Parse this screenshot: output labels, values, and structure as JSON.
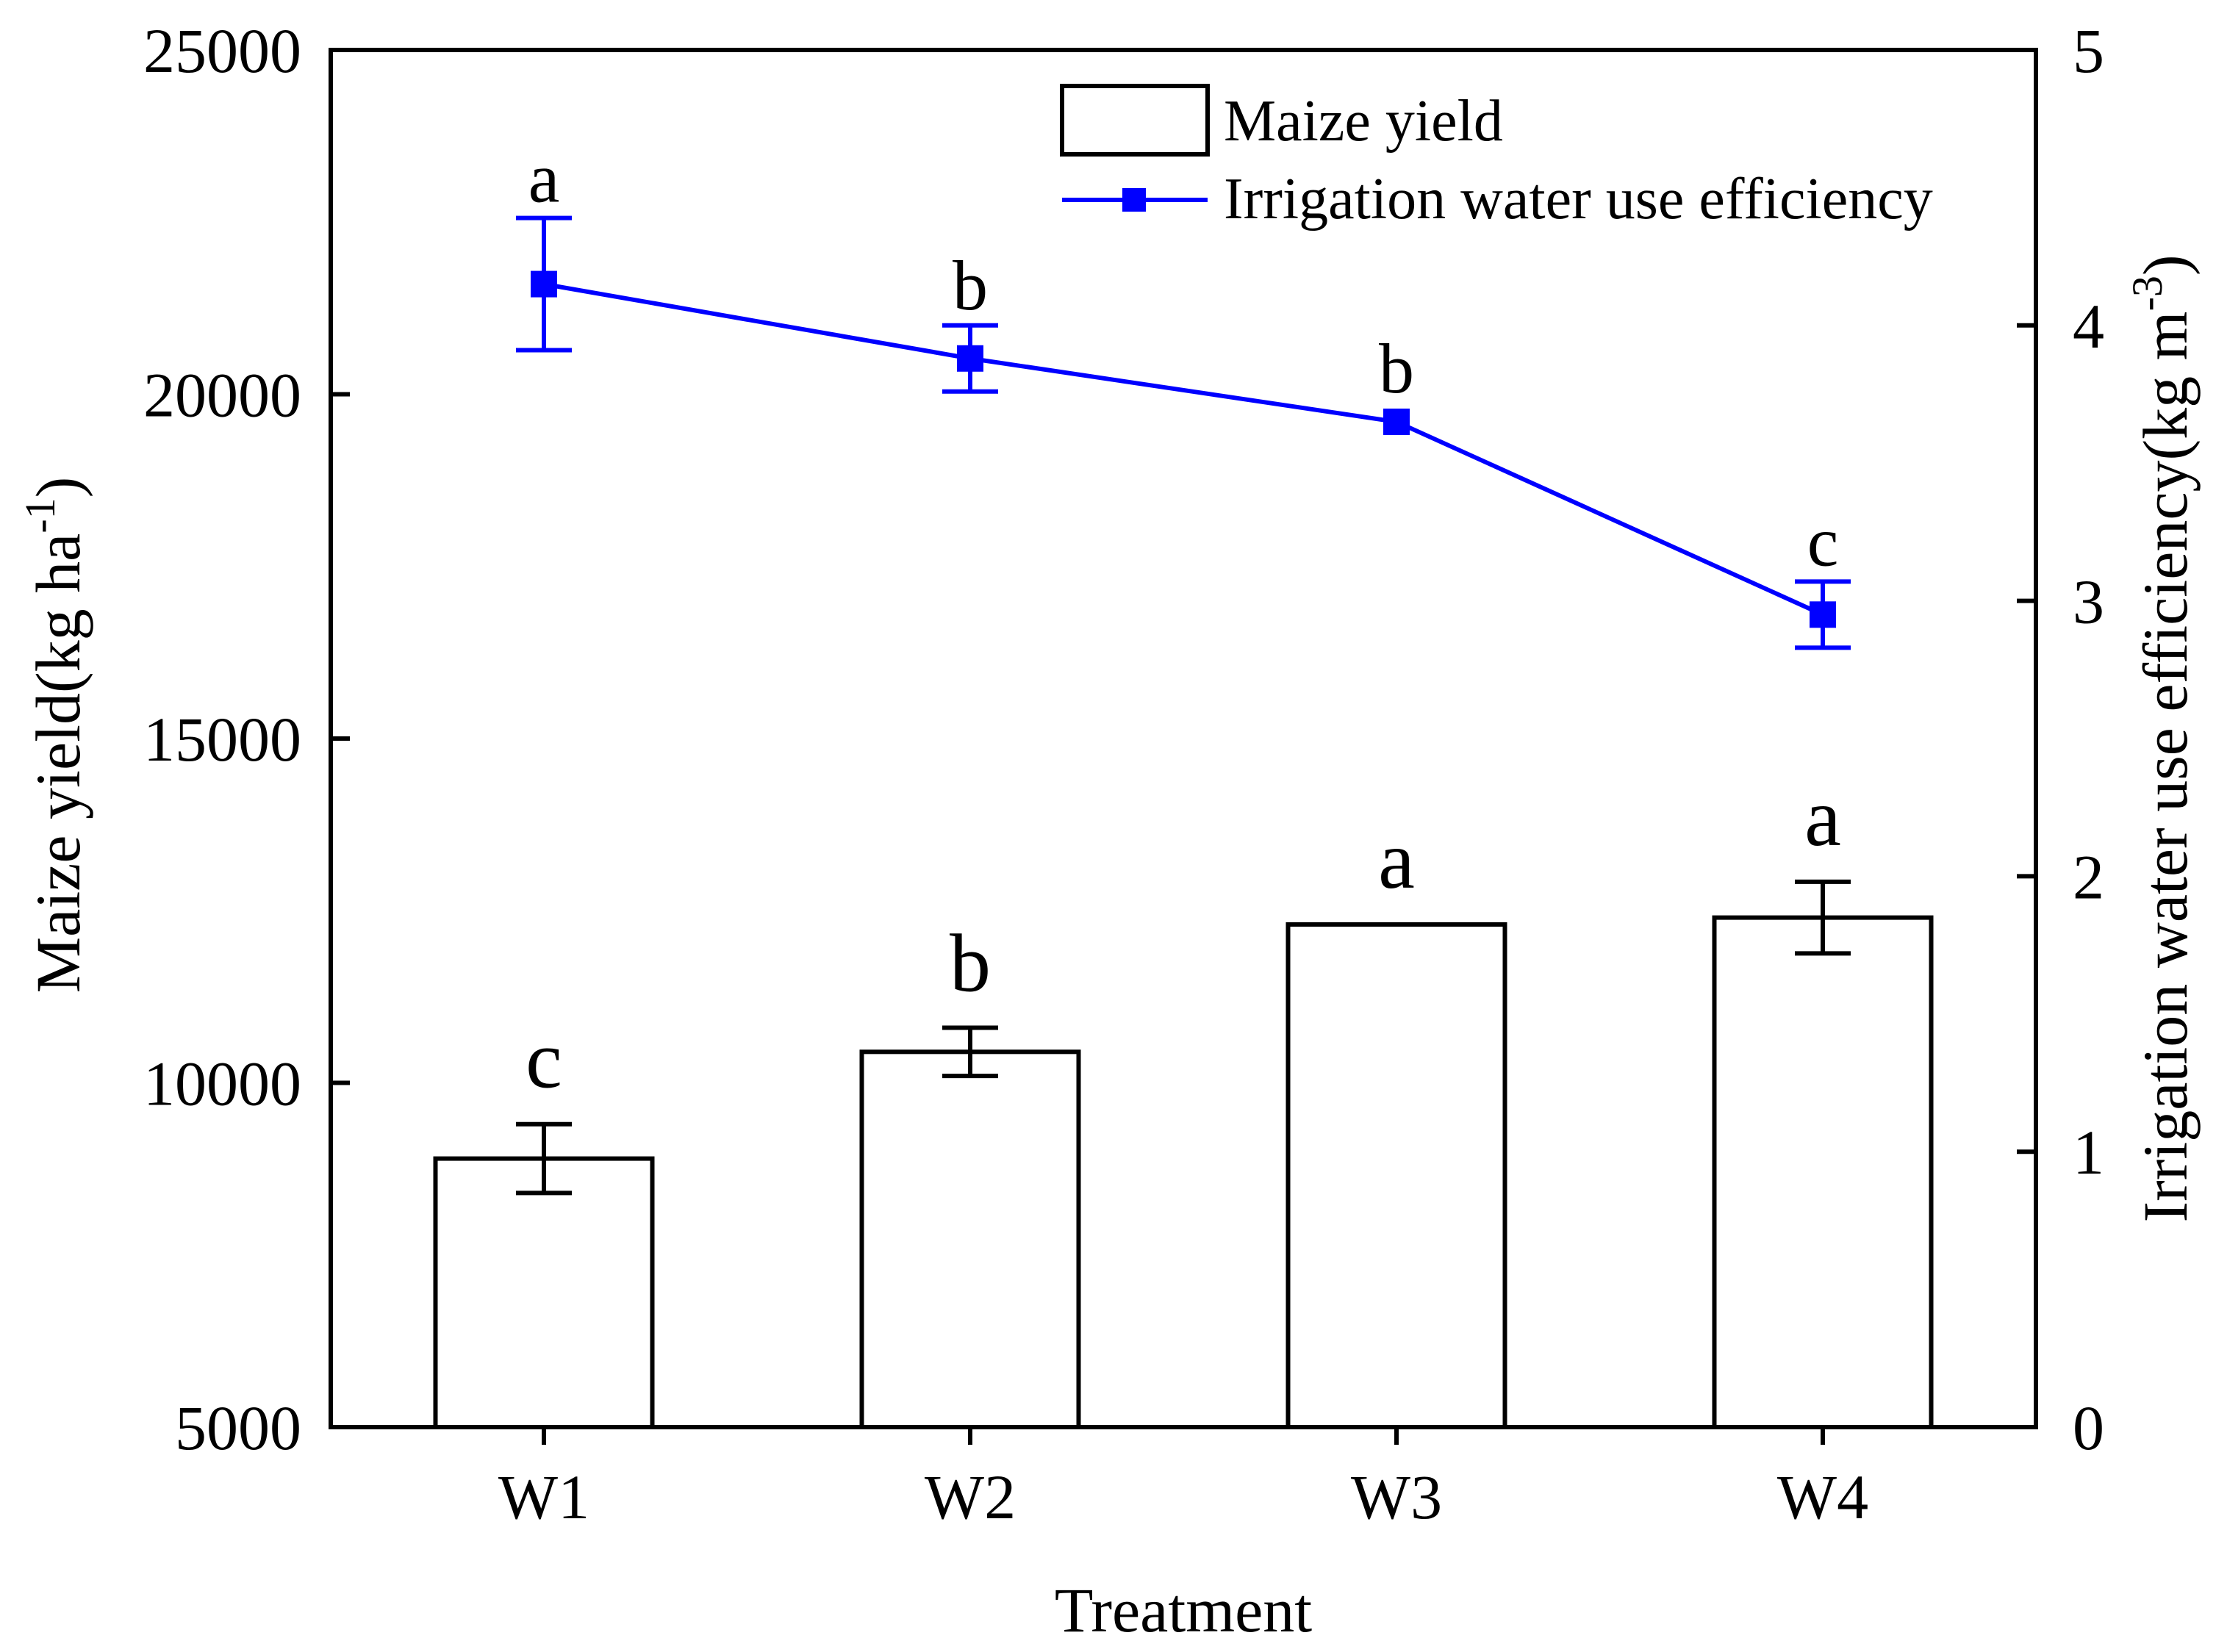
{
  "chart_data": {
    "type": "bar+line",
    "categories": [
      "W1",
      "W2",
      "W3",
      "W4"
    ],
    "xlabel": "Treatment",
    "ylabel_left": {
      "text": "Maize yield(kg ha",
      "sup": "-1",
      "close": ")"
    },
    "ylabel_right": {
      "text": "Irrigation water use efficiency(kg m",
      "sup": "-3",
      "close": ")"
    },
    "left_axis": {
      "min": 5000,
      "max": 25000,
      "ticks": [
        5000,
        10000,
        15000,
        20000,
        25000
      ]
    },
    "right_axis": {
      "min": 0,
      "max": 5,
      "ticks": [
        0,
        1,
        2,
        3,
        4,
        5
      ]
    },
    "series": [
      {
        "name": "Maize yield",
        "type": "bar",
        "axis": "left",
        "values": [
          8900,
          10450,
          12300,
          12400
        ],
        "errors": [
          500,
          350,
          0,
          520
        ],
        "letters": [
          "c",
          "b",
          "a",
          "a"
        ]
      },
      {
        "name": "Irrigation water use efficiency",
        "type": "line",
        "axis": "right",
        "color": "#0000ff",
        "values": [
          4.15,
          3.88,
          3.65,
          2.95
        ],
        "errors": [
          0.24,
          0.12,
          0.0,
          0.12
        ],
        "letters": [
          "a",
          "b",
          "b",
          "c"
        ]
      }
    ],
    "legend": {
      "position": "top-right",
      "items": [
        "Maize yield",
        "Irrigation water use efficiency"
      ]
    }
  }
}
